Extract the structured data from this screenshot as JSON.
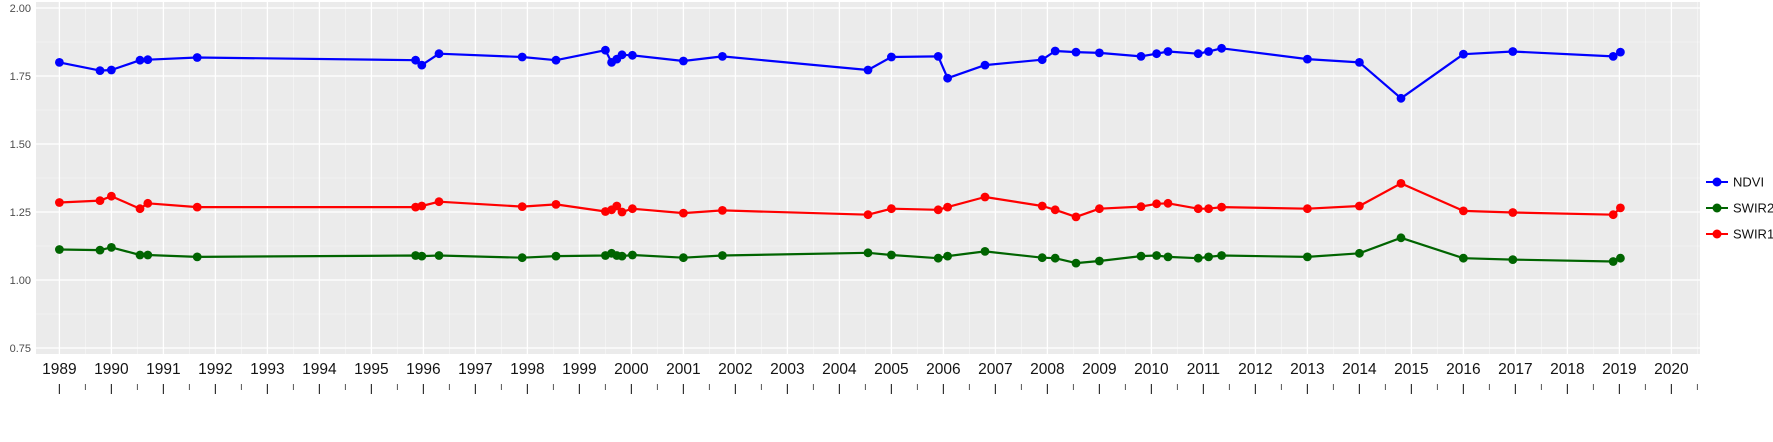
{
  "chart_data": {
    "type": "line",
    "title": "",
    "xlabel": "",
    "ylabel": "",
    "xlim": [
      1988.55,
      2020.55
    ],
    "ylim": [
      0.75,
      2.0
    ],
    "grid": true,
    "panel_bg": "#EBEBEB",
    "grid_color": "#FFFFFF",
    "tick_label_color_y": "#4d4d4d",
    "tick_label_color_x": "#141414",
    "legend_position": "right",
    "y_ticks": [
      0.75,
      1.0,
      1.25,
      1.5,
      1.75,
      2.0
    ],
    "y_tick_labels": [
      "0.75",
      "1.00",
      "1.25",
      "1.50",
      "1.75",
      "2.00"
    ],
    "x_ticks": [
      1989,
      1990,
      1991,
      1992,
      1993,
      1994,
      1995,
      1996,
      1997,
      1998,
      1999,
      2000,
      2001,
      2002,
      2003,
      2004,
      2005,
      2006,
      2007,
      2008,
      2009,
      2010,
      2011,
      2012,
      2013,
      2014,
      2015,
      2016,
      2017,
      2018,
      2019,
      2020
    ],
    "x_tick_labels": [
      "1989",
      "1990",
      "1991",
      "1992",
      "1993",
      "1994",
      "1995",
      "1996",
      "1997",
      "1998",
      "1999",
      "2000",
      "2001",
      "2002",
      "2003",
      "2004",
      "2005",
      "2006",
      "2007",
      "2008",
      "2009",
      "2010",
      "2011",
      "2012",
      "2013",
      "2014",
      "2015",
      "2016",
      "2017",
      "2018",
      "2019",
      "2020"
    ],
    "x": [
      1989.0,
      1989.78,
      1990.0,
      1990.55,
      1990.7,
      1991.65,
      1995.85,
      1995.97,
      1996.3,
      1997.9,
      1998.55,
      1999.5,
      1999.62,
      1999.72,
      1999.82,
      2000.02,
      2001.0,
      2001.75,
      2004.55,
      2005.0,
      2005.9,
      2006.08,
      2006.8,
      2007.9,
      2008.15,
      2008.55,
      2009.0,
      2009.8,
      2010.1,
      2010.32,
      2010.9,
      2011.1,
      2011.35,
      2013.0,
      2014.0,
      2014.8,
      2016.0,
      2016.95,
      2018.88,
      2019.02
    ],
    "series": [
      {
        "name": "NDVI",
        "color": "#0000FF",
        "values": [
          1.8,
          1.77,
          1.772,
          1.808,
          1.81,
          1.818,
          1.808,
          1.79,
          1.832,
          1.82,
          1.808,
          1.845,
          1.8,
          1.812,
          1.828,
          1.826,
          1.805,
          1.822,
          1.772,
          1.82,
          1.822,
          1.742,
          1.79,
          1.81,
          1.842,
          1.838,
          1.835,
          1.822,
          1.832,
          1.84,
          1.832,
          1.84,
          1.852,
          1.812,
          1.8,
          1.668,
          1.83,
          1.84,
          1.822,
          1.838
        ]
      },
      {
        "name": "SWIR2",
        "color": "#006400",
        "values": [
          1.112,
          1.11,
          1.12,
          1.092,
          1.092,
          1.085,
          1.09,
          1.088,
          1.09,
          1.082,
          1.088,
          1.09,
          1.098,
          1.09,
          1.088,
          1.092,
          1.082,
          1.09,
          1.1,
          1.092,
          1.08,
          1.088,
          1.105,
          1.082,
          1.08,
          1.062,
          1.07,
          1.088,
          1.09,
          1.085,
          1.08,
          1.085,
          1.09,
          1.085,
          1.098,
          1.155,
          1.08,
          1.075,
          1.068,
          1.08
        ]
      },
      {
        "name": "SWIR1",
        "color": "#FF0000",
        "values": [
          1.285,
          1.292,
          1.308,
          1.262,
          1.282,
          1.268,
          1.268,
          1.272,
          1.288,
          1.27,
          1.278,
          1.252,
          1.258,
          1.272,
          1.25,
          1.262,
          1.246,
          1.256,
          1.24,
          1.262,
          1.258,
          1.268,
          1.305,
          1.272,
          1.258,
          1.232,
          1.262,
          1.27,
          1.28,
          1.282,
          1.262,
          1.262,
          1.268,
          1.262,
          1.272,
          1.355,
          1.254,
          1.248,
          1.24,
          1.265
        ]
      }
    ],
    "legend": {
      "entries": [
        "NDVI",
        "SWIR2",
        "SWIR1"
      ]
    }
  }
}
